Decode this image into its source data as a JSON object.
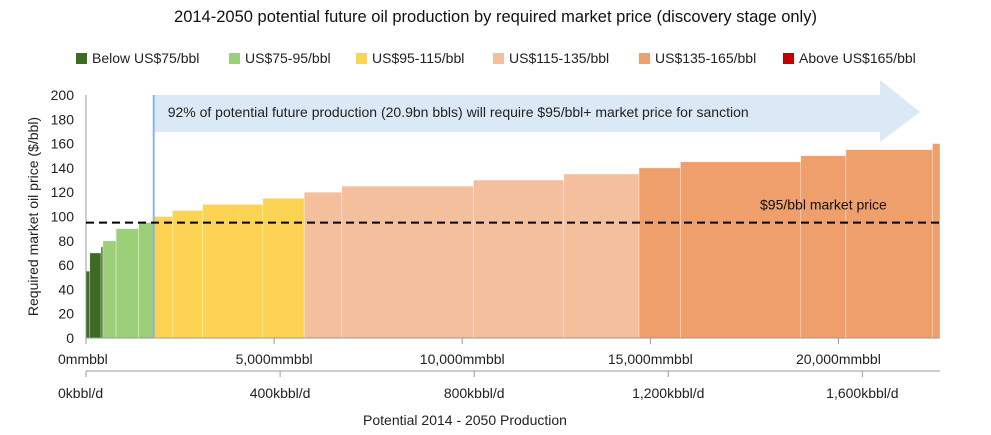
{
  "chart_data": {
    "type": "bar",
    "title": "2014-2050 potential future oil production by required market price (discovery stage only)",
    "xlabel": "Potential 2014 - 2050 Production",
    "ylabel": "Required market oil price ($/bbl)",
    "ylim": [
      0,
      200
    ],
    "yticks": [
      0,
      20,
      40,
      60,
      80,
      100,
      120,
      140,
      160,
      180,
      200
    ],
    "xlim_mmbbl": [
      0,
      22700
    ],
    "x_ticks_top": [
      {
        "value": 0,
        "label": "0mmbbl"
      },
      {
        "value": 5000,
        "label": "5,000mmbbl"
      },
      {
        "value": 10000,
        "label": "10,000mmbbl"
      },
      {
        "value": 15000,
        "label": "15,000mmbbl"
      },
      {
        "value": 20000,
        "label": "20,000mmbbl"
      }
    ],
    "x_ticks_bottom": [
      {
        "value": 0,
        "label": "0kbbl/d"
      },
      {
        "value": 400,
        "label": "400kbbl/d"
      },
      {
        "value": 800,
        "label": "800kbbl/d"
      },
      {
        "value": 1200,
        "label": "1,200kbbl/d"
      },
      {
        "value": 1600,
        "label": "1,600kbbl/d"
      }
    ],
    "kbbld_max": 1760,
    "legend": [
      {
        "name": "Below US$75/bbl",
        "color": "#3d6b22"
      },
      {
        "name": "US$75-95/bbl",
        "color": "#9ccf78"
      },
      {
        "name": "US$95-115/bbl",
        "color": "#fcd353"
      },
      {
        "name": "US$115-135/bbl",
        "color": "#f4bf9d"
      },
      {
        "name": "US$135-165/bbl",
        "color": "#ef9f6c"
      },
      {
        "name": "Above US$165/bbl",
        "color": "#c00000"
      }
    ],
    "bars": [
      {
        "x0": 0,
        "x1": 100,
        "price": 55,
        "band": 0
      },
      {
        "x0": 100,
        "x1": 400,
        "price": 70,
        "band": 0
      },
      {
        "x0": 400,
        "x1": 450,
        "price": 75,
        "band": 0
      },
      {
        "x0": 450,
        "x1": 800,
        "price": 80,
        "band": 1
      },
      {
        "x0": 800,
        "x1": 1400,
        "price": 90,
        "band": 1
      },
      {
        "x0": 1400,
        "x1": 1800,
        "price": 95,
        "band": 1
      },
      {
        "x0": 1800,
        "x1": 2300,
        "price": 100,
        "band": 2
      },
      {
        "x0": 2300,
        "x1": 3100,
        "price": 105,
        "band": 2
      },
      {
        "x0": 3100,
        "x1": 4700,
        "price": 110,
        "band": 2
      },
      {
        "x0": 4700,
        "x1": 5800,
        "price": 115,
        "band": 2
      },
      {
        "x0": 5800,
        "x1": 6800,
        "price": 120,
        "band": 3
      },
      {
        "x0": 6800,
        "x1": 10300,
        "price": 125,
        "band": 3
      },
      {
        "x0": 10300,
        "x1": 12700,
        "price": 130,
        "band": 3
      },
      {
        "x0": 12700,
        "x1": 14700,
        "price": 135,
        "band": 3
      },
      {
        "x0": 14700,
        "x1": 15800,
        "price": 140,
        "band": 4
      },
      {
        "x0": 15800,
        "x1": 19000,
        "price": 145,
        "band": 4
      },
      {
        "x0": 19000,
        "x1": 20200,
        "price": 150,
        "band": 4
      },
      {
        "x0": 20200,
        "x1": 22500,
        "price": 155,
        "band": 4
      },
      {
        "x0": 22500,
        "x1": 22700,
        "price": 160,
        "band": 4
      }
    ],
    "market_price": {
      "value": 95,
      "label": "$95/bbl market price"
    },
    "threshold_x": 1800,
    "annotation": "92% of potential future production (20.9bn bbls) will require $95/bbl+ market price for sanction",
    "colors": {
      "threshold_line": "#8eb4e3",
      "arrow": "#dbe8f6",
      "dash": "#000000"
    }
  }
}
